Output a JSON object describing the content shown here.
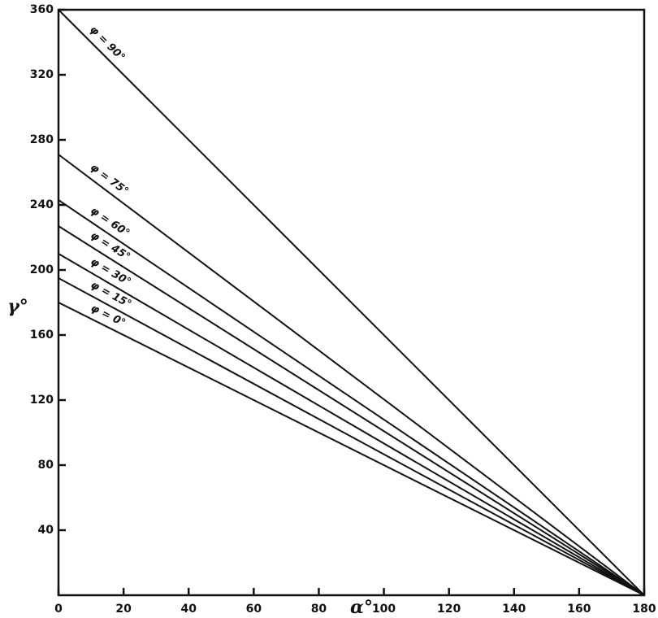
{
  "chart_data": {
    "type": "line",
    "x_label": "α°",
    "y_label": "γ°",
    "x": [
      0,
      180
    ],
    "series": [
      {
        "name": "φ = 90°",
        "color": "#111111",
        "values": [
          360,
          0
        ]
      },
      {
        "name": "φ = 75°",
        "color": "#111111",
        "values": [
          271,
          0
        ]
      },
      {
        "name": "φ = 60°",
        "color": "#111111",
        "values": [
          243,
          0
        ]
      },
      {
        "name": "φ = 45°",
        "color": "#111111",
        "values": [
          227,
          0
        ]
      },
      {
        "name": "φ = 30°",
        "color": "#111111",
        "values": [
          210,
          0
        ]
      },
      {
        "name": "φ = 15°",
        "color": "#111111",
        "values": [
          195,
          0
        ]
      },
      {
        "name": "φ = 0°",
        "color": "#111111",
        "values": [
          180,
          0
        ]
      }
    ],
    "xlim": [
      0,
      180
    ],
    "xticks": [
      0,
      20,
      40,
      60,
      80,
      100,
      120,
      140,
      160,
      180
    ],
    "ylim": [
      0,
      360
    ],
    "yticks": [
      40,
      80,
      120,
      160,
      200,
      240,
      280,
      320,
      360
    ],
    "grid": false
  }
}
